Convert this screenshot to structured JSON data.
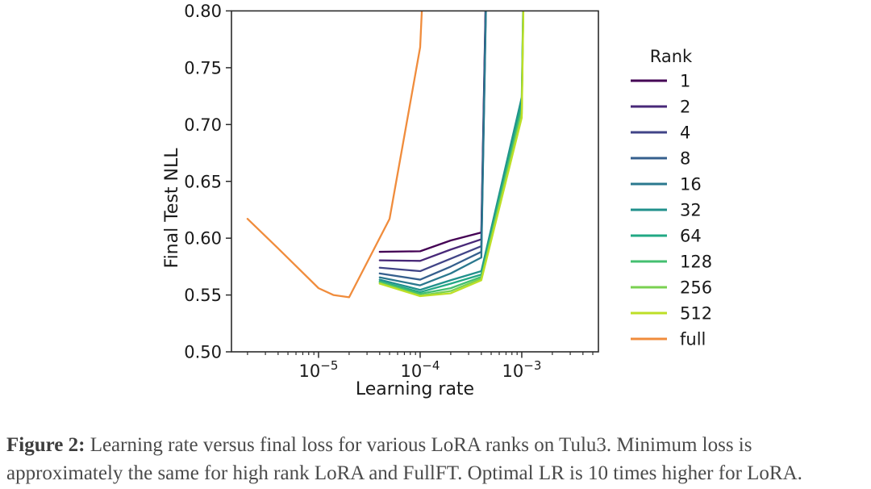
{
  "figure": {
    "caption": {
      "label": "Figure 2:",
      "line1_rest": " Learning rate versus final loss for various LoRA ranks on Tulu3. Minimum loss is",
      "line2": "approximately the same for high rank LoRA and FullFT. Optimal LR is 10 times higher for LoRA."
    }
  },
  "chart_data": {
    "type": "line",
    "title": "",
    "xlabel": "Learning rate",
    "ylabel": "Final Test NLL",
    "xscale": "log",
    "xlim": [
      1.39e-06,
      0.00568
    ],
    "ylim": [
      0.5,
      0.8
    ],
    "yticks": [
      0.5,
      0.55,
      0.6,
      0.65,
      0.7,
      0.75,
      0.8
    ],
    "xtick_exponents": [
      -5,
      -4,
      -3
    ],
    "grid": false,
    "legend_title": "Rank",
    "legend_position": "right",
    "text_color": "#1a1a1a",
    "axis_color": "#2b2b2b",
    "series": [
      {
        "name": "1",
        "color": "#440154",
        "x": [
          4e-05,
          0.0001,
          0.0002,
          0.0004,
          0.001
        ],
        "y": [
          0.588,
          0.5885,
          0.598,
          0.605,
          2.5
        ]
      },
      {
        "name": "2",
        "color": "#482878",
        "x": [
          4e-05,
          0.0001,
          0.0002,
          0.0004,
          0.001
        ],
        "y": [
          0.5805,
          0.58,
          0.59,
          0.599,
          2.5
        ]
      },
      {
        "name": "4",
        "color": "#414487",
        "x": [
          4e-05,
          0.0001,
          0.0002,
          0.0004,
          0.001
        ],
        "y": [
          0.574,
          0.571,
          0.582,
          0.593,
          2.5
        ]
      },
      {
        "name": "8",
        "color": "#355f8d",
        "x": [
          4e-05,
          0.0001,
          0.0002,
          0.0004,
          0.001
        ],
        "y": [
          0.569,
          0.5635,
          0.575,
          0.588,
          2.5
        ]
      },
      {
        "name": "16",
        "color": "#2a788e",
        "x": [
          4e-05,
          0.0001,
          0.0002,
          0.0004,
          0.001
        ],
        "y": [
          0.5655,
          0.5585,
          0.569,
          0.583,
          2.5
        ]
      },
      {
        "name": "32",
        "color": "#21918c",
        "x": [
          4e-05,
          0.0001,
          0.0002,
          0.0004,
          0.001,
          0.002
        ],
        "y": [
          0.5635,
          0.5545,
          0.563,
          0.571,
          0.724,
          2.5
        ]
      },
      {
        "name": "64",
        "color": "#22a884",
        "x": [
          4e-05,
          0.0001,
          0.0002,
          0.0004,
          0.001,
          0.002
        ],
        "y": [
          0.562,
          0.5525,
          0.56,
          0.568,
          0.7185,
          2.5
        ]
      },
      {
        "name": "128",
        "color": "#44bf70",
        "x": [
          4e-05,
          0.0001,
          0.0002,
          0.0004,
          0.001,
          0.002
        ],
        "y": [
          0.5615,
          0.551,
          0.556,
          0.566,
          0.7135,
          2.5
        ]
      },
      {
        "name": "256",
        "color": "#7ad151",
        "x": [
          4e-05,
          0.0001,
          0.0002,
          0.0004,
          0.001,
          0.002
        ],
        "y": [
          0.5605,
          0.5495,
          0.5535,
          0.5645,
          0.7095,
          2.5
        ]
      },
      {
        "name": "512",
        "color": "#bddf26",
        "x": [
          4e-05,
          0.0001,
          0.0002,
          0.0004,
          0.001,
          0.002
        ],
        "y": [
          0.56,
          0.549,
          0.5515,
          0.563,
          0.706,
          2.5
        ]
      },
      {
        "name": "full",
        "color": "#f08c3c",
        "x": [
          2e-06,
          4e-06,
          1e-05,
          1.4e-05,
          2e-05,
          5e-05,
          0.0001,
          0.0002
        ],
        "y": [
          0.617,
          0.591,
          0.556,
          0.55,
          0.548,
          0.617,
          0.768,
          1.35
        ]
      }
    ]
  }
}
